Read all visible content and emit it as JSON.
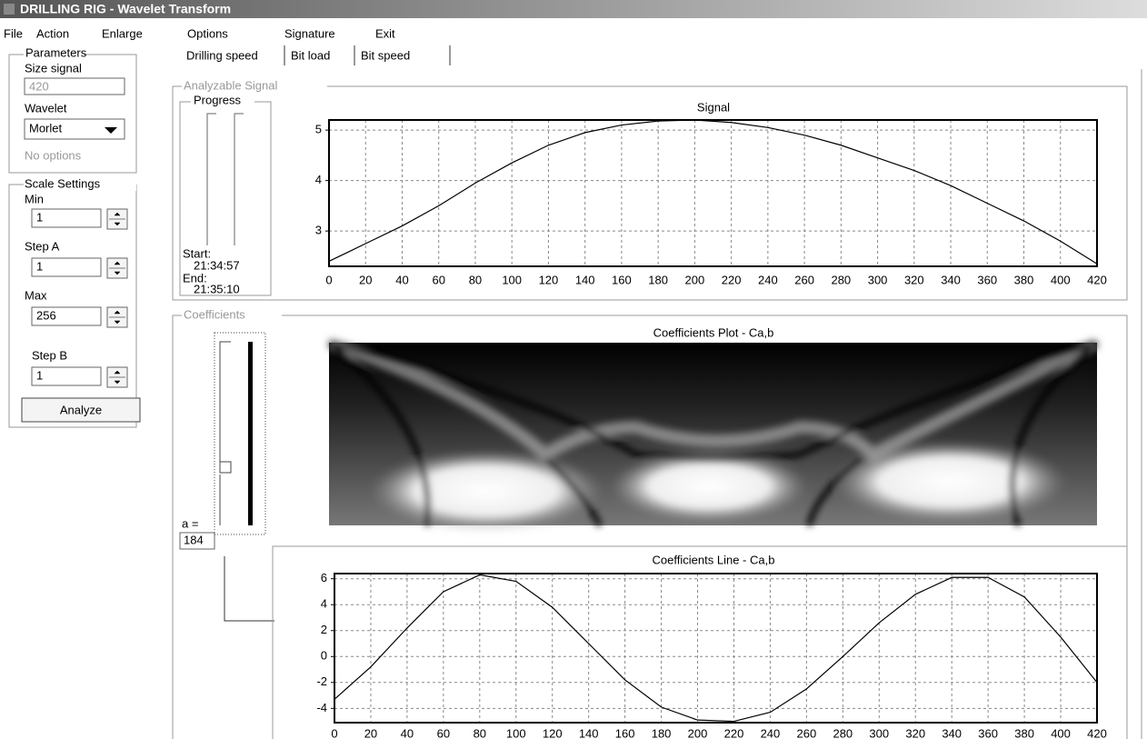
{
  "window": {
    "title": "DRILLING RIG - Wavelet Transform"
  },
  "menu": [
    "File",
    "Action",
    "Enlarge",
    "Options",
    "Signature",
    "Exit"
  ],
  "parameters": {
    "title": "Parameters",
    "size_signal_label": "Size signal",
    "size_signal": "420",
    "wavelet_label": "Wavelet",
    "wavelet": "Morlet",
    "options_note": "No options"
  },
  "scale_settings": {
    "title": "Scale Settings",
    "min_label": "Min",
    "min": "1",
    "step_a_label": "Step A",
    "step_a": "1",
    "max_label": "Max",
    "max": "256",
    "step_b_label": "Step B",
    "step_b": "1",
    "button": "Analyze"
  },
  "tabs": [
    "Drilling speed",
    "Bit load",
    "Bit speed"
  ],
  "analyzable_signal": {
    "title": "Analyzable Signal",
    "progress_title": "Progress",
    "start_label": "Start:",
    "start": "21:34:57",
    "end_label": "End:",
    "end": "21:35:10",
    "chart": {
      "type": "line",
      "title": "Signal",
      "x": [
        0,
        20,
        40,
        60,
        80,
        100,
        120,
        140,
        160,
        180,
        200,
        220,
        240,
        260,
        280,
        300,
        320,
        340,
        360,
        380,
        400,
        420
      ],
      "values": [
        2.4,
        2.75,
        3.1,
        3.5,
        3.95,
        4.35,
        4.7,
        4.95,
        5.1,
        5.18,
        5.2,
        5.15,
        5.05,
        4.9,
        4.7,
        4.45,
        4.2,
        3.9,
        3.55,
        3.2,
        2.8,
        2.35
      ],
      "color": "#000000",
      "xlim": [
        0,
        420
      ],
      "ylim": [
        2.3,
        5.2
      ],
      "xticks": [
        0,
        20,
        40,
        60,
        80,
        100,
        120,
        140,
        160,
        180,
        200,
        220,
        240,
        260,
        280,
        300,
        320,
        340,
        360,
        380,
        400,
        420
      ],
      "yticks": [
        3,
        4,
        5
      ],
      "grid": true
    }
  },
  "coefficients": {
    "title": "Coefficients",
    "plot_title": "Coefficients Plot - Ca,b",
    "a_label": "a =",
    "a_value": "184",
    "chart": {
      "type": "line",
      "title": "Coefficients Line - Ca,b",
      "x": [
        0,
        20,
        40,
        60,
        80,
        100,
        120,
        140,
        160,
        180,
        200,
        220,
        240,
        260,
        280,
        300,
        320,
        340,
        360,
        380,
        400,
        420
      ],
      "values": [
        -3.3,
        -0.8,
        2.2,
        5.0,
        6.3,
        5.8,
        3.8,
        1.0,
        -1.8,
        -3.9,
        -4.9,
        -5.0,
        -4.3,
        -2.5,
        0.0,
        2.6,
        4.8,
        6.1,
        6.1,
        4.6,
        1.5,
        -2.0
      ],
      "color": "#000000",
      "xlim": [
        0,
        420
      ],
      "ylim": [
        -5.1,
        6.4
      ],
      "xticks": [
        0,
        20,
        40,
        60,
        80,
        100,
        120,
        140,
        160,
        180,
        200,
        220,
        240,
        260,
        280,
        300,
        320,
        340,
        360,
        380,
        400,
        420
      ],
      "yticks": [
        -4,
        -2,
        0,
        2,
        4,
        6
      ],
      "grid": true
    }
  }
}
